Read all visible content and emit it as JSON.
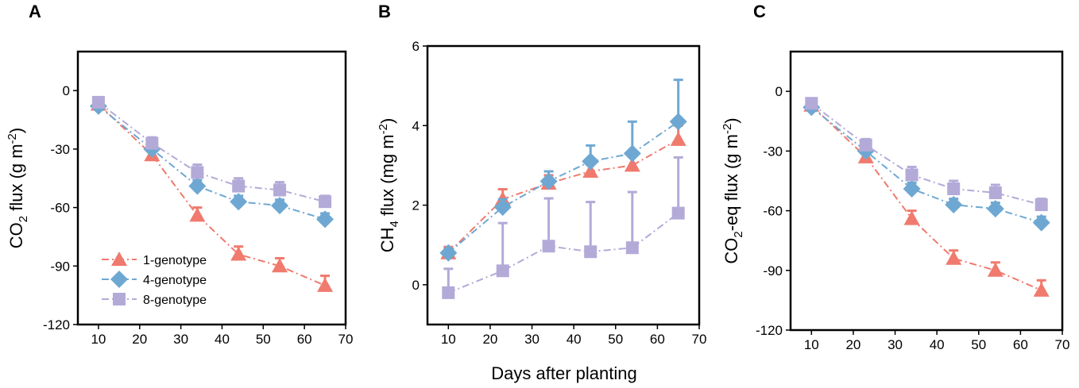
{
  "shared_xlabel": "Days after planting",
  "series_styles": [
    {
      "name": "1-genotype",
      "color": "#f07a6e",
      "marker": "triangle"
    },
    {
      "name": "4-genotype",
      "color": "#6ea8d2",
      "marker": "diamond"
    },
    {
      "name": "8-genotype",
      "color": "#b3aad8",
      "marker": "square"
    }
  ],
  "chart_data": [
    {
      "panel": "A",
      "type": "line",
      "ylabel_main": "CO",
      "ylabel_sub": "2",
      "ylabel_rest": " flux (g m",
      "ylabel_sup": "-2",
      "ylabel_end": ")",
      "xlim": [
        5,
        70
      ],
      "ylim": [
        -120,
        20
      ],
      "xticks": [
        10,
        20,
        30,
        40,
        50,
        60,
        70
      ],
      "yticks": [
        0,
        -30,
        -60,
        -90,
        -120
      ],
      "x": [
        10,
        23,
        34,
        44,
        54,
        65
      ],
      "legend": "bottom-left",
      "series": [
        {
          "name": "1-genotype",
          "values": [
            -7,
            -33,
            -64,
            -84,
            -90,
            -100
          ],
          "err": [
            3,
            3,
            4,
            4,
            4,
            5
          ]
        },
        {
          "name": "4-genotype",
          "values": [
            -8,
            -30,
            -49,
            -57,
            -59,
            -66
          ],
          "err": [
            2,
            3,
            3,
            3,
            3,
            3
          ]
        },
        {
          "name": "8-genotype",
          "values": [
            -6,
            -27,
            -42,
            -49,
            -51,
            -57
          ],
          "err": [
            2,
            3,
            4,
            4,
            4,
            3
          ]
        }
      ]
    },
    {
      "panel": "B",
      "type": "line",
      "ylabel_main": "CH",
      "ylabel_sub": "4",
      "ylabel_rest": " flux (mg m",
      "ylabel_sup": "-2",
      "ylabel_end": ")",
      "xlim": [
        5,
        70
      ],
      "ylim": [
        -1,
        6
      ],
      "xticks": [
        10,
        20,
        30,
        40,
        50,
        60,
        70
      ],
      "yticks": [
        0,
        2,
        4,
        6
      ],
      "x": [
        10,
        23,
        34,
        44,
        54,
        65
      ],
      "legend": "none",
      "series": [
        {
          "name": "1-genotype",
          "values": [
            0.8,
            2.15,
            2.55,
            2.85,
            3.0,
            3.65
          ],
          "err": [
            0.15,
            0.25,
            0.2,
            0.25,
            0.25,
            0.35
          ]
        },
        {
          "name": "4-genotype",
          "values": [
            0.8,
            1.95,
            2.6,
            3.1,
            3.3,
            4.1
          ],
          "err": [
            0.1,
            0.2,
            0.25,
            0.4,
            0.8,
            1.05
          ]
        },
        {
          "name": "8-genotype",
          "values": [
            -0.2,
            0.35,
            0.97,
            0.83,
            0.93,
            1.8
          ],
          "err": [
            0.6,
            1.2,
            1.2,
            1.25,
            1.4,
            1.4
          ]
        }
      ]
    },
    {
      "panel": "C",
      "type": "line",
      "ylabel_main": "CO",
      "ylabel_sub": "2",
      "ylabel_rest": "-eq flux (g m",
      "ylabel_sup": "-2",
      "ylabel_end": ")",
      "xlim": [
        5,
        70
      ],
      "ylim": [
        -120,
        20
      ],
      "xticks": [
        10,
        20,
        30,
        40,
        50,
        60,
        70
      ],
      "yticks": [
        0,
        -30,
        -60,
        -90,
        -120
      ],
      "x": [
        10,
        23,
        34,
        44,
        54,
        65
      ],
      "legend": "none",
      "series": [
        {
          "name": "1-genotype",
          "values": [
            -7,
            -33,
            -64,
            -84,
            -90,
            -100
          ],
          "err": [
            3,
            3,
            4,
            4,
            4,
            5
          ]
        },
        {
          "name": "4-genotype",
          "values": [
            -8,
            -30,
            -49,
            -57,
            -59,
            -66
          ],
          "err": [
            2,
            3,
            3,
            3,
            3,
            3
          ]
        },
        {
          "name": "8-genotype",
          "values": [
            -6,
            -27,
            -42,
            -49,
            -51,
            -57
          ],
          "err": [
            2,
            3,
            4,
            4,
            4,
            3
          ]
        }
      ]
    }
  ]
}
